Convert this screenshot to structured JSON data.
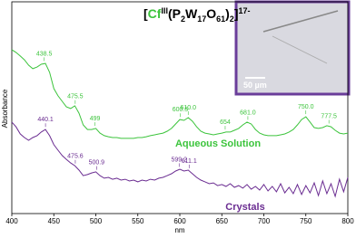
{
  "chart_data": {
    "type": "line",
    "title_parts": [
      "[",
      "Cf",
      "III",
      "(P",
      "2",
      "W",
      "17",
      "O",
      "61",
      ")",
      "2",
      "]",
      "17-"
    ],
    "xlabel": "nm",
    "ylabel": "Absorbance",
    "xlim": [
      400,
      800
    ],
    "xticks": [
      400,
      450,
      500,
      550,
      600,
      650,
      700,
      750,
      800
    ],
    "ylim": [
      0,
      1
    ],
    "inset_scale_label": "50 µm",
    "x": [
      400,
      405,
      410,
      415,
      420,
      425,
      430,
      435,
      440,
      445,
      450,
      455,
      460,
      465,
      470,
      475,
      480,
      485,
      490,
      495,
      500,
      505,
      510,
      515,
      520,
      525,
      530,
      535,
      540,
      545,
      550,
      555,
      560,
      565,
      570,
      575,
      580,
      585,
      590,
      595,
      600,
      605,
      610,
      615,
      620,
      625,
      630,
      635,
      640,
      645,
      650,
      655,
      660,
      665,
      670,
      675,
      680,
      685,
      690,
      695,
      700,
      705,
      710,
      715,
      720,
      725,
      730,
      735,
      740,
      745,
      750,
      755,
      760,
      765,
      770,
      775,
      780,
      785,
      790,
      795,
      800
    ],
    "series": [
      {
        "name": "Aqueous Solution",
        "color": "#3cc43c",
        "values": [
          0.774,
          0.761,
          0.744,
          0.726,
          0.701,
          0.684,
          0.692,
          0.705,
          0.709,
          0.667,
          0.59,
          0.556,
          0.53,
          0.504,
          0.496,
          0.509,
          0.474,
          0.419,
          0.397,
          0.397,
          0.402,
          0.38,
          0.368,
          0.363,
          0.359,
          0.359,
          0.355,
          0.355,
          0.355,
          0.355,
          0.359,
          0.359,
          0.363,
          0.368,
          0.372,
          0.376,
          0.38,
          0.389,
          0.402,
          0.423,
          0.444,
          0.44,
          0.453,
          0.436,
          0.41,
          0.389,
          0.38,
          0.376,
          0.372,
          0.376,
          0.38,
          0.385,
          0.385,
          0.393,
          0.402,
          0.419,
          0.432,
          0.423,
          0.397,
          0.38,
          0.372,
          0.368,
          0.368,
          0.368,
          0.372,
          0.376,
          0.385,
          0.397,
          0.419,
          0.444,
          0.457,
          0.432,
          0.406,
          0.402,
          0.406,
          0.415,
          0.41,
          0.393,
          0.38,
          0.376,
          0.38
        ],
        "peaks": [
          {
            "value": 438.5,
            "label": "438.5"
          },
          {
            "value": 475.5,
            "label": "475.5"
          },
          499,
          {
            "value": 600.5,
            "label": "600.5"
          },
          {
            "value": 610,
            "label": "610.0"
          },
          654,
          {
            "value": 681,
            "label": "681.0"
          },
          {
            "value": 750,
            "label": "750.0"
          },
          {
            "value": 777.5,
            "label": "777.5"
          }
        ]
      },
      {
        "name": "Crystals",
        "color": "#6a2c91",
        "values": [
          0.432,
          0.41,
          0.376,
          0.359,
          0.346,
          0.359,
          0.368,
          0.385,
          0.397,
          0.368,
          0.325,
          0.299,
          0.274,
          0.256,
          0.239,
          0.226,
          0.205,
          0.179,
          0.184,
          0.192,
          0.197,
          0.179,
          0.167,
          0.171,
          0.162,
          0.167,
          0.158,
          0.162,
          0.154,
          0.158,
          0.15,
          0.158,
          0.154,
          0.162,
          0.158,
          0.167,
          0.171,
          0.179,
          0.188,
          0.201,
          0.209,
          0.201,
          0.205,
          0.188,
          0.171,
          0.158,
          0.15,
          0.141,
          0.145,
          0.132,
          0.137,
          0.128,
          0.141,
          0.124,
          0.132,
          0.12,
          0.137,
          0.115,
          0.128,
          0.111,
          0.137,
          0.107,
          0.128,
          0.103,
          0.141,
          0.098,
          0.124,
          0.094,
          0.137,
          0.09,
          0.132,
          0.098,
          0.145,
          0.085,
          0.154,
          0.094,
          0.141,
          0.081,
          0.162,
          0.103,
          0.171
        ],
        "peaks": [
          {
            "value": 440.1,
            "label": "440.1"
          },
          {
            "value": 475.6,
            "label": "475.6"
          },
          {
            "value": 500.9,
            "label": "500.9"
          },
          {
            "value": 599.2,
            "label": "599.2"
          },
          {
            "value": 611.1,
            "label": "611.1"
          }
        ]
      }
    ]
  }
}
